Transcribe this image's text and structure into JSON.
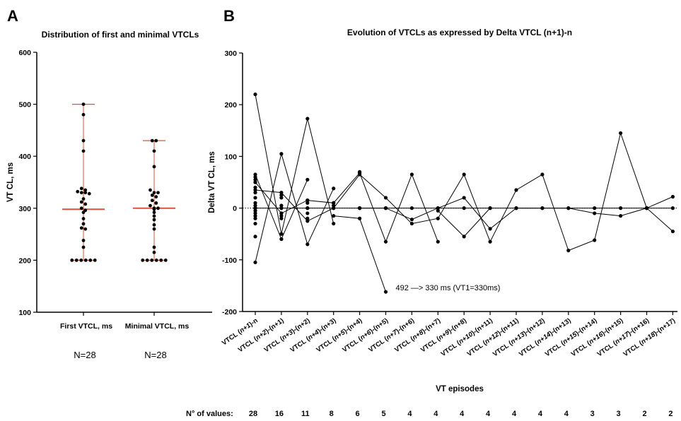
{
  "chart_data": [
    {
      "panel": "A",
      "type": "scatter",
      "title": "Distribution of first and minimal VTCLs",
      "ylabel": "VT CL, ms",
      "ylim": [
        100,
        600
      ],
      "yticks": [
        100,
        200,
        300,
        400,
        500,
        600
      ],
      "categories": [
        "First VTCL, ms",
        "Minimal VTCL, ms"
      ],
      "counts_text": [
        "N=28",
        "N=28"
      ],
      "median_color": "#d9553b",
      "series": [
        {
          "category": "First VTCL, ms",
          "median": 298,
          "min": 200,
          "max": 500,
          "values": [
            500,
            480,
            430,
            410,
            338,
            335,
            332,
            330,
            330,
            328,
            318,
            312,
            308,
            300,
            296,
            292,
            280,
            270,
            262,
            260,
            238,
            225,
            200,
            200,
            200,
            200,
            200,
            200
          ]
        },
        {
          "category": "Minimal VTCL, ms",
          "median": 300,
          "min": 200,
          "max": 430,
          "values": [
            430,
            430,
            410,
            380,
            335,
            330,
            330,
            325,
            322,
            315,
            310,
            305,
            300,
            300,
            298,
            292,
            285,
            278,
            268,
            260,
            225,
            215,
            200,
            200,
            200,
            200,
            200,
            200
          ]
        }
      ]
    },
    {
      "panel": "B",
      "type": "line",
      "title": "Evolution of VTCLs as expressed by Delta VTCL (n+1)-n",
      "ylabel": "Delta VT CL, ms",
      "xlabel": "VT episodes",
      "ylim": [
        -200,
        300
      ],
      "yticks": [
        -200,
        -100,
        0,
        100,
        200,
        300
      ],
      "reference_line": 0,
      "categories": [
        {
          "pre": "VTCL (",
          "n": "n+1",
          "post": ")-n"
        },
        {
          "pre": "VTCL (",
          "n": "n+2",
          "post": ")-(n+1)"
        },
        {
          "pre": "VTCL (",
          "n": "n+3",
          "post": ")-(n+2)"
        },
        {
          "pre": "VTCL (",
          "n": "n+4",
          "post": ")-(n+3)"
        },
        {
          "pre": "VTCL (",
          "n": "n+5",
          "post": ")-(n+4)"
        },
        {
          "pre": "VTCL (",
          "n": "n+6",
          "post": ")-(n+5)"
        },
        {
          "pre": "VTCL (",
          "n": "n+7",
          "post": ")-(n+6)"
        },
        {
          "pre": "VTCL (",
          "n": "n+8",
          "post": ")-(n+7)"
        },
        {
          "pre": "VTCL (",
          "n": "n+9",
          "post": ")-(n+8)"
        },
        {
          "pre": "VTCL (",
          "n": "n+10",
          "post": ")-(n+11)"
        },
        {
          "pre": "VTCL (",
          "n": "n+12",
          "post": ")-(n+11)"
        },
        {
          "pre": "VTCL (",
          "n": "n+13",
          "post": ")-(n+12)"
        },
        {
          "pre": "VTCL (",
          "n": "n+14",
          "post": ")-(n+13)"
        },
        {
          "pre": "VTCL (",
          "n": "n+15",
          "post": ")-(n+14)"
        },
        {
          "pre": "VTCL (",
          "n": "n+16",
          "post": ")-(n+15)"
        },
        {
          "pre": "VTCL (",
          "n": "n+17",
          "post": ")-(n+16)"
        },
        {
          "pre": "VTCL (",
          "n": "n+18",
          "post": ")-(n+17)"
        }
      ],
      "n_values_label": "N° of values:",
      "n_values": [
        28,
        16,
        11,
        8,
        6,
        5,
        4,
        4,
        4,
        4,
        4,
        4,
        4,
        3,
        3,
        2,
        2
      ],
      "annotation": {
        "text": "492 —> 330 ms (VT1=330ms)",
        "x": 5,
        "y": -162
      },
      "extra_points": [
        {
          "x": 0,
          "y": 60
        },
        {
          "x": 0,
          "y": 55
        },
        {
          "x": 0,
          "y": 50
        },
        {
          "x": 0,
          "y": 40
        },
        {
          "x": 0,
          "y": 30
        },
        {
          "x": 0,
          "y": 20
        },
        {
          "x": 0,
          "y": 10
        },
        {
          "x": 0,
          "y": 5
        },
        {
          "x": 0,
          "y": 0
        },
        {
          "x": 0,
          "y": -5
        },
        {
          "x": 0,
          "y": -10
        },
        {
          "x": 0,
          "y": -15
        },
        {
          "x": 0,
          "y": -20
        },
        {
          "x": 0,
          "y": -30
        },
        {
          "x": 0,
          "y": -55
        },
        {
          "x": 1,
          "y": 25
        },
        {
          "x": 1,
          "y": 20
        },
        {
          "x": 1,
          "y": 5
        },
        {
          "x": 1,
          "y": 0
        },
        {
          "x": 1,
          "y": -10
        },
        {
          "x": 1,
          "y": -15
        },
        {
          "x": 1,
          "y": -20
        },
        {
          "x": 1,
          "y": -50
        },
        {
          "x": 1,
          "y": -60
        },
        {
          "x": 2,
          "y": 15
        },
        {
          "x": 2,
          "y": 10
        },
        {
          "x": 2,
          "y": 0
        },
        {
          "x": 2,
          "y": -10
        },
        {
          "x": 2,
          "y": -20
        },
        {
          "x": 3,
          "y": 10
        },
        {
          "x": 3,
          "y": 5
        },
        {
          "x": 3,
          "y": 0
        },
        {
          "x": 4,
          "y": 70
        },
        {
          "x": 4,
          "y": 0
        },
        {
          "x": 5,
          "y": 0
        }
      ],
      "series": [
        {
          "points": [
            [
              0,
              220
            ],
            [
              1,
              -50
            ],
            [
              2,
              173
            ],
            [
              3,
              -30
            ]
          ]
        },
        {
          "points": [
            [
              0,
              -105
            ],
            [
              1,
              105
            ],
            [
              2,
              -70
            ],
            [
              3,
              38
            ]
          ]
        },
        {
          "points": [
            [
              0,
              65
            ],
            [
              1,
              -60
            ],
            [
              2,
              55
            ]
          ]
        },
        {
          "points": [
            [
              0,
              50
            ],
            [
              1,
              -10
            ],
            [
              2,
              15
            ],
            [
              3,
              10
            ],
            [
              4,
              68
            ],
            [
              5,
              -65
            ],
            [
              6,
              65
            ],
            [
              7,
              -65
            ]
          ]
        },
        {
          "points": [
            [
              0,
              35
            ],
            [
              1,
              30
            ],
            [
              2,
              -25
            ],
            [
              3,
              0
            ],
            [
              4,
              65
            ],
            [
              5,
              20
            ],
            [
              6,
              -30
            ],
            [
              7,
              -20
            ],
            [
              8,
              65
            ],
            [
              9,
              -65
            ],
            [
              10,
              35
            ],
            [
              11,
              65
            ],
            [
              12,
              -82
            ],
            [
              13,
              -62
            ],
            [
              14,
              145
            ],
            [
              15,
              0
            ],
            [
              16,
              -45
            ]
          ]
        },
        {
          "points": [
            [
              0,
              0
            ],
            [
              1,
              0
            ],
            [
              2,
              0
            ],
            [
              3,
              0
            ],
            [
              4,
              0
            ],
            [
              5,
              0
            ],
            [
              6,
              0
            ],
            [
              7,
              0
            ],
            [
              8,
              0
            ],
            [
              9,
              0
            ],
            [
              10,
              0
            ],
            [
              11,
              0
            ],
            [
              12,
              0
            ],
            [
              13,
              0
            ],
            [
              14,
              0
            ],
            [
              15,
              0
            ],
            [
              16,
              0
            ]
          ]
        },
        {
          "points": [
            [
              3,
              -15
            ],
            [
              4,
              -20
            ],
            [
              5,
              -162
            ]
          ]
        },
        {
          "points": [
            [
              4,
              0
            ],
            [
              5,
              0
            ],
            [
              6,
              -22
            ],
            [
              7,
              0
            ],
            [
              8,
              20
            ],
            [
              9,
              -40
            ],
            [
              10,
              0
            ],
            [
              11,
              0
            ],
            [
              12,
              0
            ],
            [
              13,
              -10
            ],
            [
              14,
              -15
            ],
            [
              15,
              0
            ]
          ]
        },
        {
          "points": [
            [
              7,
              -5
            ],
            [
              8,
              -55
            ],
            [
              9,
              0
            ]
          ]
        },
        {
          "points": [
            [
              15,
              0
            ],
            [
              16,
              22
            ]
          ]
        }
      ]
    }
  ]
}
